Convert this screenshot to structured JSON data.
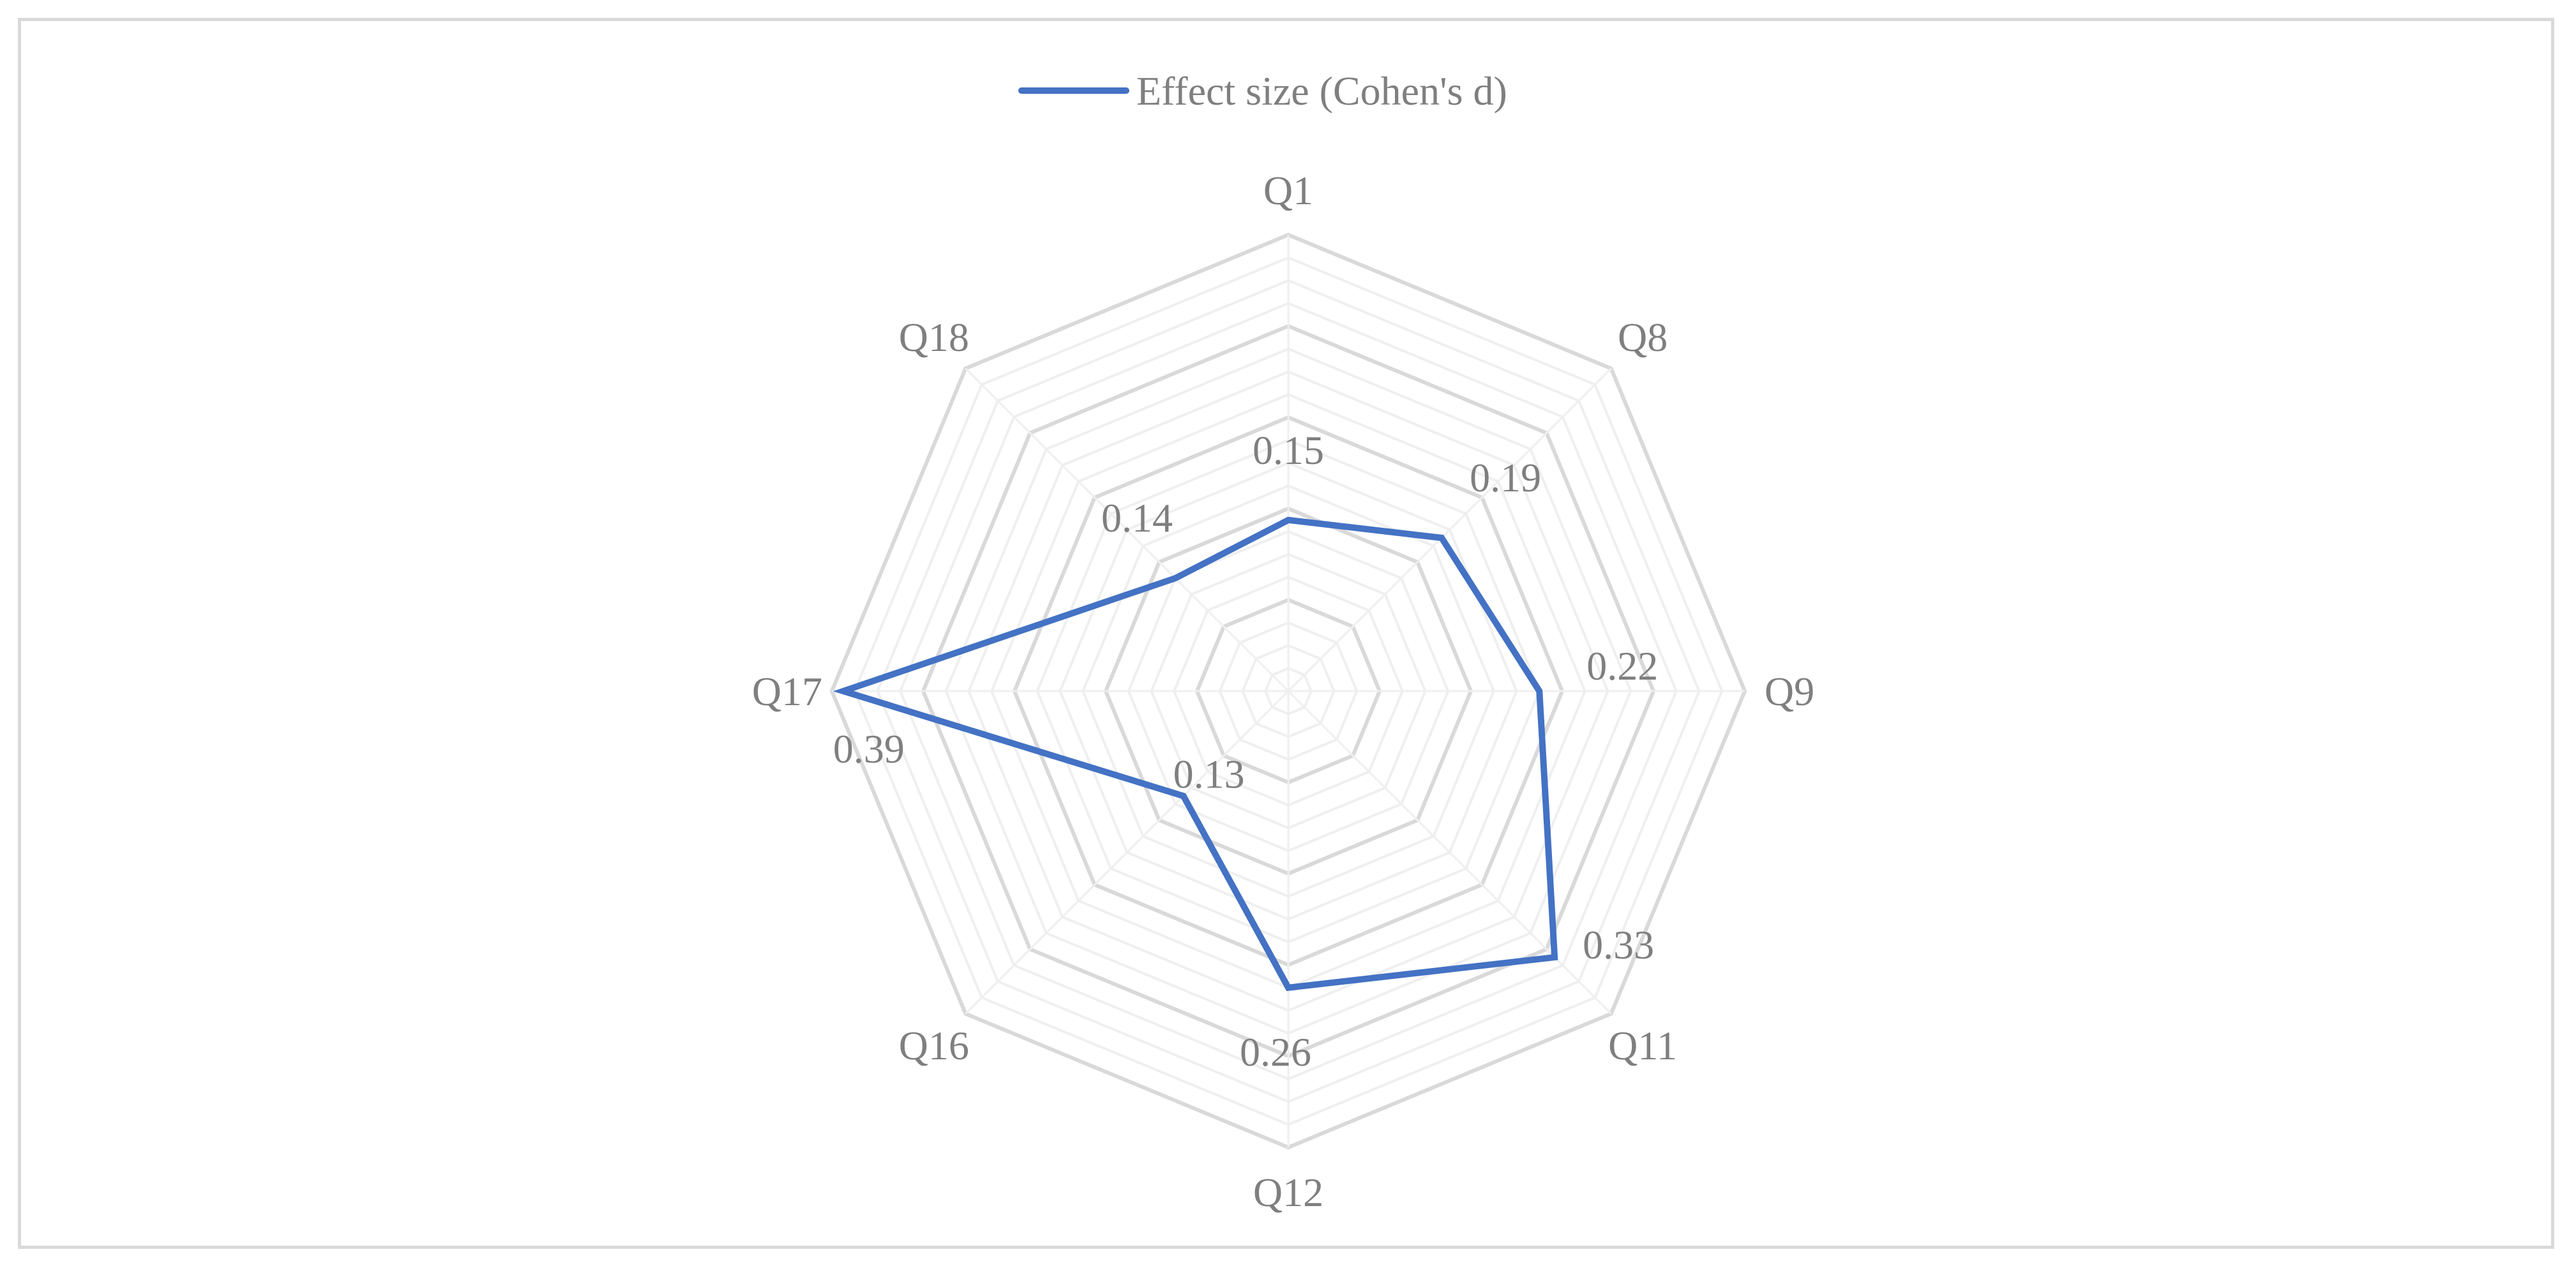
{
  "chart_data": {
    "type": "radar",
    "title": "",
    "categories": [
      "Q1",
      "Q8",
      "Q9",
      "Q11",
      "Q12",
      "Q16",
      "Q17",
      "Q18"
    ],
    "series": [
      {
        "name": "Effect size (Cohen's d)",
        "values": [
          0.15,
          0.19,
          0.22,
          0.33,
          0.26,
          0.13,
          0.39,
          0.14
        ],
        "color": "#4472c4"
      }
    ],
    "rlim": [
      0,
      0.4
    ],
    "grid": true,
    "grid_color": "#d9d9d9",
    "minor_grid_color": "#efefef",
    "legend": "top",
    "label_color": "#7f7f7f"
  }
}
